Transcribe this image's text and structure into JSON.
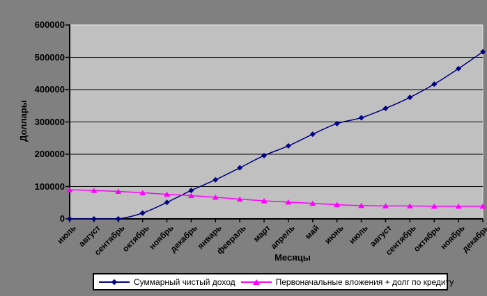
{
  "chart": {
    "background_color": "#808080",
    "plot_fill_color": "#C0C0C0",
    "gridline_color": "#000000",
    "axis_color": "#000000",
    "legend": {
      "fill_color": "#FFFFFF",
      "border_color": "#000000"
    }
  },
  "chart_data": {
    "type": "line",
    "title": "",
    "xlabel": "Месяцы",
    "ylabel": "Доллары",
    "ylim": [
      0,
      600000
    ],
    "y_ticks": [
      0,
      100000,
      200000,
      300000,
      400000,
      500000,
      600000
    ],
    "grid": true,
    "legend_position": "bottom",
    "marker_styles": [
      "diamond",
      "triangle"
    ],
    "categories": [
      "июль",
      "август",
      "сентябрь",
      "октябрь",
      "ноябрь",
      "декабрь",
      "январь",
      "февраль",
      "март",
      "апрель",
      "май",
      "июнь",
      "июль",
      "август",
      "сентябрь",
      "октябрь",
      "ноябрь",
      "декабрь"
    ],
    "series": [
      {
        "name": "Суммарный чистый доход",
        "color": "#000080",
        "marker": "diamond",
        "values": [
          0,
          0,
          0,
          18000,
          51000,
          88000,
          121000,
          158000,
          196000,
          226000,
          262000,
          295000,
          313000,
          342000,
          376000,
          417000,
          465000,
          517000
        ]
      },
      {
        "name": "Первоначальные вложения + долг по кредиту",
        "color": "#FF00FF",
        "marker": "triangle",
        "values": [
          90000,
          88000,
          85000,
          81000,
          76000,
          72000,
          67000,
          61000,
          56000,
          52000,
          48000,
          44000,
          41000,
          40000,
          40000,
          39000,
          39000,
          39000
        ]
      }
    ]
  }
}
